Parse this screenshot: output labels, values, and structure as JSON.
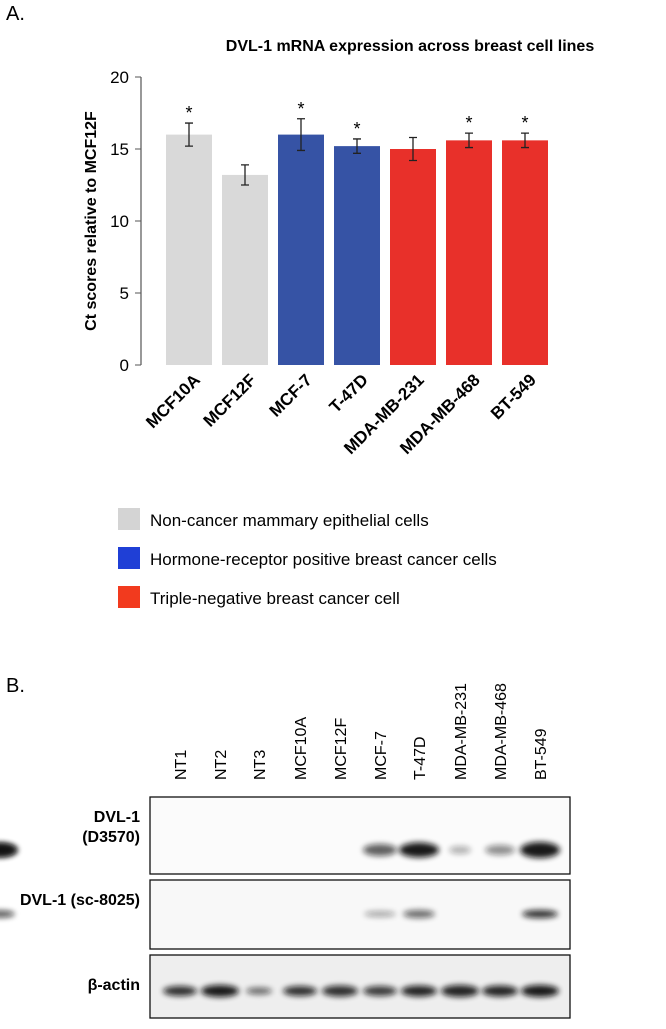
{
  "panel_a_label": "A.",
  "panel_b_label": "B.",
  "chart_data": {
    "type": "bar",
    "title": "DVL-1 mRNA  expression across breast cell lines",
    "ylabel": "Ct scores relative to MCF12F",
    "categories": [
      "MCF10A",
      "MCF12F",
      "MCF-7",
      "T-47D",
      "MDA-MB-231",
      "MDA-MB-468",
      "BT-549"
    ],
    "values": [
      16.0,
      13.2,
      16.0,
      15.2,
      15.0,
      15.6,
      15.6
    ],
    "errors": [
      0.8,
      0.7,
      1.1,
      0.5,
      0.8,
      0.5,
      0.5
    ],
    "annotations": [
      "*",
      null,
      "*",
      "*",
      null,
      "*",
      "*"
    ],
    "colors": [
      "#d9d9d9",
      "#d9d9d9",
      "#3653a5",
      "#3653a5",
      "#e8302a",
      "#e8302a",
      "#e8302a"
    ],
    "ylim": [
      0,
      20
    ],
    "yticks": [
      0,
      5,
      10,
      15,
      20
    ],
    "legend": [
      {
        "name": "Non-cancer mammary epithelial cells",
        "color": "#d4d4d4"
      },
      {
        "name": "Hormone-receptor positive breast cancer cells",
        "color": "#1f3fd6"
      },
      {
        "name": "Triple-negative breast cancer cell",
        "color": "#f23a1e"
      }
    ]
  },
  "blot": {
    "lanes": [
      "NT1",
      "NT2",
      "NT3",
      "MCF10A",
      "MCF12F",
      "MCF-7",
      "T-47D",
      "MDA-MB-231",
      "MDA-MB-468",
      "BT-549"
    ],
    "rows": [
      [
        "DVL-1",
        "(D3570)"
      ],
      [
        "DVL-1 (sc-8025)"
      ],
      [
        "β-actin"
      ]
    ]
  }
}
